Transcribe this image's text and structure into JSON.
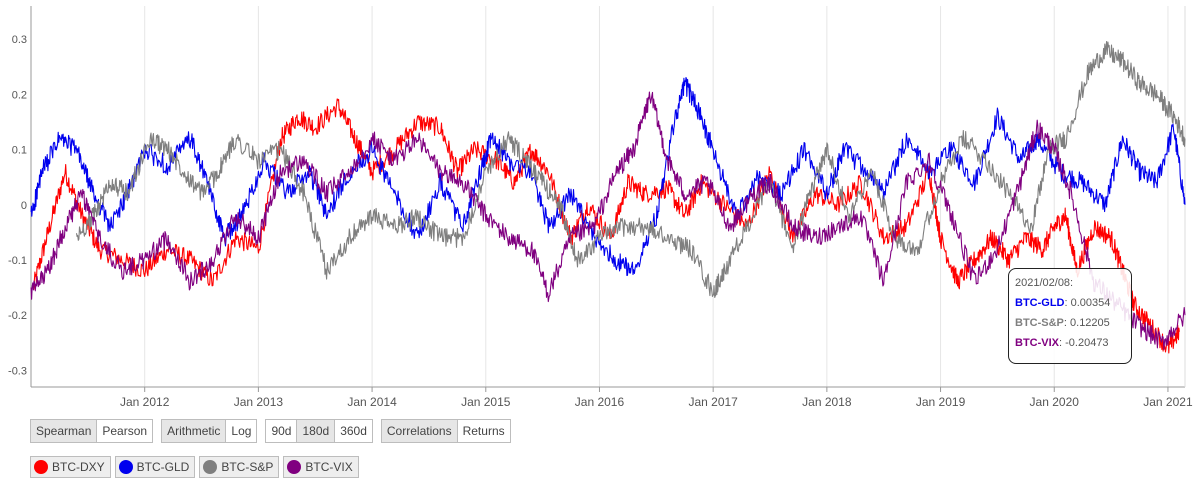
{
  "chart_data": {
    "type": "line",
    "xlim": [
      2011.0,
      2021.15
    ],
    "ylim": [
      -0.33,
      0.36
    ],
    "y_ticks": [
      -0.3,
      -0.2,
      -0.1,
      0,
      0.1,
      0.2,
      0.3
    ],
    "y_tick_labels": [
      "-0.3",
      "-0.2",
      "-0.1",
      "0",
      "0.1",
      "0.2",
      "0.3"
    ],
    "x_tick_labels": [
      "Jan 2012",
      "Jan 2013",
      "Jan 2014",
      "Jan 2015",
      "Jan 2016",
      "Jan 2017",
      "Jan 2018",
      "Jan 2019",
      "Jan 2020",
      "Jan 2021"
    ],
    "x_tick_values": [
      2012,
      2013,
      2014,
      2015,
      2016,
      2017,
      2018,
      2019,
      2020,
      2021
    ],
    "grid": "vertical",
    "series": [
      {
        "name": "BTC-DXY",
        "color": "#ff0000",
        "x": [
          2011.02,
          2011.15,
          2011.3,
          2011.45,
          2011.6,
          2011.8,
          2012.0,
          2012.2,
          2012.4,
          2012.6,
          2012.8,
          2013.0,
          2013.2,
          2013.35,
          2013.5,
          2013.7,
          2013.85,
          2014.0,
          2014.2,
          2014.4,
          2014.6,
          2014.75,
          2014.9,
          2015.1,
          2015.25,
          2015.4,
          2015.55,
          2015.75,
          2015.9,
          2016.1,
          2016.25,
          2016.4,
          2016.6,
          2016.75,
          2016.9,
          2017.1,
          2017.3,
          2017.5,
          2017.7,
          2017.9,
          2018.1,
          2018.3,
          2018.5,
          2018.7,
          2018.9,
          2019.0,
          2019.15,
          2019.3,
          2019.45,
          2019.6,
          2019.75,
          2019.9,
          2020.0,
          2020.1,
          2020.2,
          2020.35,
          2020.5,
          2020.6,
          2020.7,
          2020.85,
          2021.0,
          2021.1
        ],
        "y": [
          -0.15,
          -0.05,
          0.06,
          -0.02,
          -0.08,
          -0.1,
          -0.12,
          -0.08,
          -0.1,
          -0.14,
          -0.06,
          -0.08,
          0.12,
          0.16,
          0.14,
          0.18,
          0.12,
          0.06,
          0.1,
          0.15,
          0.14,
          0.06,
          0.1,
          0.08,
          0.04,
          0.1,
          0.06,
          -0.06,
          0.0,
          -0.06,
          0.04,
          0.02,
          0.03,
          -0.02,
          0.04,
          0.0,
          -0.04,
          0.06,
          -0.06,
          0.02,
          0.0,
          0.04,
          -0.06,
          -0.04,
          0.06,
          -0.06,
          -0.14,
          -0.1,
          -0.06,
          -0.1,
          -0.06,
          -0.08,
          -0.04,
          -0.02,
          -0.12,
          -0.04,
          -0.06,
          -0.12,
          -0.18,
          -0.22,
          -0.26,
          -0.23
        ]
      },
      {
        "name": "BTC-GLD",
        "color": "#0000ee",
        "x": [
          2011.0,
          2011.1,
          2011.25,
          2011.4,
          2011.55,
          2011.7,
          2011.85,
          2012.0,
          2012.2,
          2012.4,
          2012.55,
          2012.7,
          2012.85,
          2013.05,
          2013.25,
          2013.45,
          2013.6,
          2013.8,
          2014.0,
          2014.2,
          2014.4,
          2014.6,
          2014.8,
          2014.95,
          2015.05,
          2015.2,
          2015.4,
          2015.55,
          2015.75,
          2015.95,
          2016.15,
          2016.3,
          2016.5,
          2016.65,
          2016.75,
          2016.85,
          2017.0,
          2017.2,
          2017.4,
          2017.6,
          2017.8,
          2018.0,
          2018.15,
          2018.35,
          2018.5,
          2018.7,
          2018.9,
          2019.1,
          2019.3,
          2019.5,
          2019.7,
          2019.85,
          2020.05,
          2020.25,
          2020.45,
          2020.6,
          2020.75,
          2020.9,
          2021.05,
          2021.15
        ],
        "y": [
          -0.02,
          0.06,
          0.12,
          0.1,
          0.02,
          -0.04,
          0.02,
          0.1,
          0.07,
          0.12,
          0.04,
          -0.06,
          -0.02,
          0.08,
          0.02,
          0.06,
          -0.02,
          0.06,
          0.1,
          0.02,
          -0.06,
          0.04,
          -0.04,
          0.06,
          0.12,
          0.08,
          0.06,
          -0.04,
          0.02,
          -0.06,
          -0.1,
          -0.12,
          -0.02,
          0.14,
          0.22,
          0.18,
          0.1,
          -0.02,
          0.05,
          0.02,
          0.1,
          0.02,
          0.1,
          0.06,
          0.02,
          0.12,
          0.06,
          0.1,
          0.04,
          0.16,
          0.08,
          0.12,
          0.06,
          0.04,
          0.0,
          0.12,
          0.06,
          0.04,
          0.14,
          0.0
        ]
      },
      {
        "name": "BTC-S&P",
        "color": "#7f7f7f",
        "x": [
          2011.4,
          2011.55,
          2011.7,
          2011.85,
          2012.05,
          2012.2,
          2012.35,
          2012.5,
          2012.65,
          2012.8,
          2013.0,
          2013.2,
          2013.4,
          2013.6,
          2013.8,
          2014.0,
          2014.2,
          2014.4,
          2014.6,
          2014.8,
          2015.0,
          2015.2,
          2015.35,
          2015.5,
          2015.65,
          2015.8,
          2016.0,
          2016.2,
          2016.4,
          2016.6,
          2016.8,
          2017.0,
          2017.1,
          2017.3,
          2017.5,
          2017.7,
          2017.85,
          2018.0,
          2018.2,
          2018.4,
          2018.6,
          2018.8,
          2019.0,
          2019.2,
          2019.4,
          2019.6,
          2019.8,
          2019.95,
          2020.1,
          2020.3,
          2020.45,
          2020.6,
          2020.75,
          2020.9,
          2021.05,
          2021.15
        ],
        "y": [
          -0.06,
          -0.02,
          0.04,
          0.02,
          0.12,
          0.1,
          0.06,
          0.02,
          0.06,
          0.12,
          0.08,
          0.1,
          0.02,
          -0.12,
          -0.06,
          -0.02,
          -0.04,
          -0.02,
          -0.06,
          -0.06,
          0.06,
          0.12,
          0.08,
          0.04,
          0.0,
          -0.1,
          -0.06,
          -0.04,
          -0.04,
          -0.06,
          -0.08,
          -0.16,
          -0.12,
          -0.04,
          0.04,
          -0.08,
          0.02,
          0.1,
          -0.02,
          0.06,
          -0.06,
          -0.08,
          0.04,
          0.12,
          0.08,
          0.02,
          -0.04,
          0.1,
          0.12,
          0.24,
          0.28,
          0.26,
          0.22,
          0.2,
          0.16,
          0.12
        ]
      },
      {
        "name": "BTC-VIX",
        "color": "#800080",
        "x": [
          2011.0,
          2011.15,
          2011.3,
          2011.45,
          2011.6,
          2011.8,
          2012.0,
          2012.2,
          2012.4,
          2012.6,
          2012.8,
          2013.0,
          2013.2,
          2013.4,
          2013.6,
          2013.8,
          2014.0,
          2014.2,
          2014.4,
          2014.6,
          2014.8,
          2015.0,
          2015.2,
          2015.4,
          2015.55,
          2015.75,
          2015.95,
          2016.15,
          2016.3,
          2016.45,
          2016.6,
          2016.75,
          2016.95,
          2017.15,
          2017.35,
          2017.5,
          2017.7,
          2017.9,
          2018.1,
          2018.3,
          2018.5,
          2018.7,
          2018.9,
          2019.1,
          2019.3,
          2019.5,
          2019.7,
          2019.85,
          2020.0,
          2020.15,
          2020.35,
          2020.55,
          2020.75,
          2020.95,
          2021.15
        ],
        "y": [
          -0.16,
          -0.12,
          -0.04,
          0.02,
          -0.06,
          -0.12,
          -0.1,
          -0.06,
          -0.14,
          -0.1,
          -0.02,
          -0.06,
          0.06,
          0.08,
          0.02,
          0.06,
          0.12,
          0.08,
          0.12,
          0.06,
          0.04,
          -0.02,
          -0.06,
          -0.08,
          -0.16,
          -0.06,
          -0.04,
          0.06,
          0.1,
          0.2,
          0.08,
          0.02,
          0.04,
          -0.04,
          0.02,
          0.04,
          -0.04,
          -0.06,
          -0.04,
          -0.02,
          -0.14,
          0.04,
          0.08,
          -0.02,
          -0.14,
          -0.08,
          0.04,
          0.14,
          0.1,
          0.02,
          -0.14,
          -0.18,
          -0.22,
          -0.25,
          -0.2
        ]
      }
    ],
    "tooltip": {
      "date": "2021/02/08:",
      "rows": [
        {
          "name": "BTC-GLD",
          "value": "0.00354",
          "color": "#0000ee"
        },
        {
          "name": "BTC-S&P",
          "value": "0.12205",
          "color": "#7f7f7f"
        },
        {
          "name": "BTC-VIX",
          "value": "-0.20473",
          "color": "#800080"
        }
      ]
    }
  },
  "controls": {
    "method": [
      "Spearman",
      "Pearson"
    ],
    "scale": [
      "Arithmetic",
      "Log"
    ],
    "window": [
      "90d",
      "180d",
      "360d"
    ],
    "mode": [
      "Correlations",
      "Returns"
    ]
  },
  "legend": [
    {
      "label": "BTC-DXY",
      "color": "#ff0000"
    },
    {
      "label": "BTC-GLD",
      "color": "#0000ee"
    },
    {
      "label": "BTC-S&P",
      "color": "#7f7f7f"
    },
    {
      "label": "BTC-VIX",
      "color": "#800080"
    }
  ]
}
